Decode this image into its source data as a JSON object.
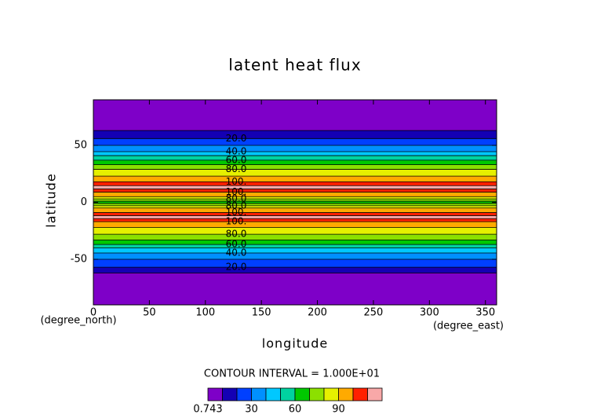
{
  "chart_data": {
    "type": "zonal_contour",
    "title": "latent heat flux",
    "x_label": "longitude",
    "y_label": "latitude",
    "x_units": "(degree_east)",
    "y_units": "(degree_north)",
    "xlim": [
      0,
      360
    ],
    "xticks": [
      0,
      50,
      100,
      150,
      200,
      250,
      300,
      350
    ],
    "ylim": [
      -90,
      90
    ],
    "yticks": [
      -50,
      0,
      50
    ],
    "profile": {
      "lat": [
        -90,
        -70,
        -62,
        -57,
        -50,
        -44.5,
        -40,
        -37,
        -33,
        -28,
        -22,
        -17,
        -13,
        -9,
        -5,
        -2,
        0,
        2,
        5,
        9,
        13,
        18,
        23,
        29,
        33,
        37,
        41,
        44.5,
        50,
        56,
        63,
        75,
        90
      ],
      "values": [
        0.743,
        4,
        10,
        20,
        30,
        40,
        50,
        60,
        70,
        80,
        90,
        100,
        115,
        100,
        90,
        75,
        65,
        75,
        90,
        100,
        115,
        100,
        90,
        80,
        70,
        60,
        50,
        40,
        30,
        20,
        10,
        3,
        0.743
      ]
    },
    "levels": [
      0.743,
      10,
      20,
      30,
      40,
      50,
      60,
      70,
      80,
      90,
      100,
      110,
      120
    ],
    "colors": [
      "#7e00c8",
      "#1400b4",
      "#0040ff",
      "#0090ff",
      "#00c8ff",
      "#00d2a0",
      "#00c800",
      "#8ce000",
      "#e6f000",
      "#ffaa00",
      "#ff2000",
      "#f8a8a8"
    ],
    "contour_labels": [
      {
        "value": 20,
        "label": "20.0"
      },
      {
        "value": 40,
        "label": "40.0"
      },
      {
        "value": 60,
        "label": "60.0"
      },
      {
        "value": 80,
        "label": "80.0"
      },
      {
        "value": 100,
        "label": "100."
      }
    ],
    "contour_interval_label": "CONTOUR INTERVAL = 1.000E+01",
    "colorbar_ticks": [
      0.743,
      30,
      60,
      90
    ]
  }
}
